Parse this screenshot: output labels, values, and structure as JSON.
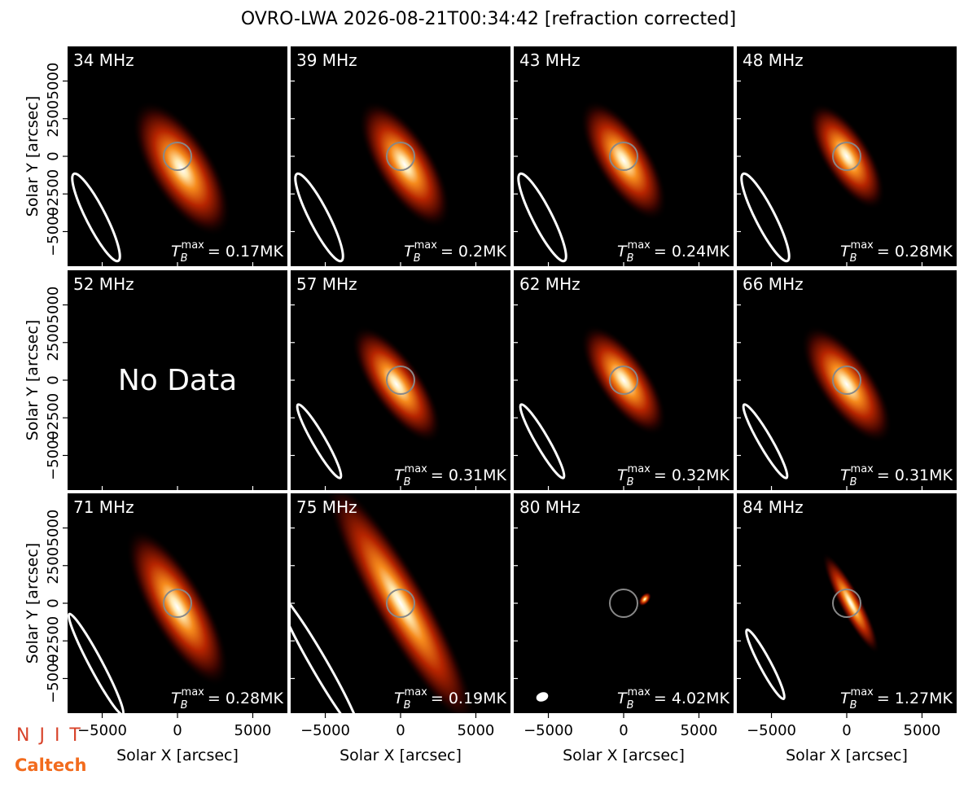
{
  "chart_data": {
    "type": "image-grid",
    "title": "OVRO-LWA 2026-08-21T00:34:42 [refraction corrected]",
    "xlabel": "Solar X [arcsec]",
    "ylabel": "Solar Y [arcsec]",
    "xlim": [
      -7300,
      7300
    ],
    "ylim": [
      -7300,
      7300
    ],
    "xticks": [
      {
        "value": -5000,
        "label": "−5000"
      },
      0,
      5000
    ],
    "yticks": [
      {
        "value": -5000,
        "label": "−5000"
      },
      {
        "value": -2500,
        "label": "−2500"
      },
      0,
      2500,
      5000
    ],
    "annotation_symbol": {
      "base": "T",
      "sub": "B",
      "sup": "max"
    },
    "panels": [
      {
        "label": "34 MHz",
        "annotation": "= 0.17MK"
      },
      {
        "label": "39 MHz",
        "annotation": "= 0.2MK"
      },
      {
        "label": "43 MHz",
        "annotation": "= 0.24MK"
      },
      {
        "label": "48 MHz",
        "annotation": "= 0.28MK"
      },
      {
        "label": "52 MHz",
        "note": "No Data"
      },
      {
        "label": "57 MHz",
        "annotation": "= 0.31MK"
      },
      {
        "label": "62 MHz",
        "annotation": "= 0.32MK"
      },
      {
        "label": "66 MHz",
        "annotation": "= 0.31MK"
      },
      {
        "label": "71 MHz",
        "annotation": "= 0.28MK"
      },
      {
        "label": "75 MHz",
        "annotation": "= 0.19MK"
      },
      {
        "label": "80 MHz",
        "annotation": "= 4.02MK"
      },
      {
        "label": "84 MHz",
        "annotation": "= 1.27MK"
      }
    ],
    "logos": [
      "NJIT",
      "Caltech"
    ]
  }
}
